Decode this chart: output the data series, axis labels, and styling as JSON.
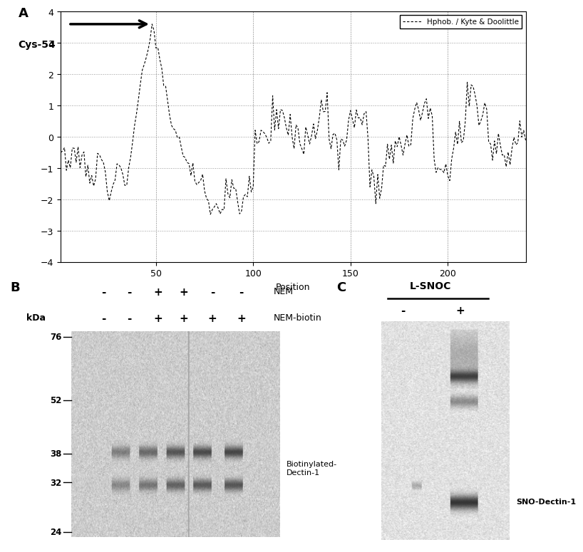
{
  "panel_A_label": "A",
  "panel_B_label": "B",
  "panel_C_label": "C",
  "legend_label": "Hphob. / Kyte & Doolittle",
  "xlabel": "Position",
  "yticks": [
    -4,
    -3,
    -2,
    -1,
    0,
    1,
    2,
    3,
    4
  ],
  "xticks": [
    50,
    100,
    150,
    200
  ],
  "ylim": [
    -4,
    4
  ],
  "xlim": [
    1,
    240
  ],
  "cys54_label": "Cys-54",
  "NEM_label": "NEM",
  "NEM_biotin_label": "NEM-biotin",
  "kDa_label": "kDa",
  "kDa_values": [
    76,
    52,
    38,
    32,
    24
  ],
  "biotinylated_label": "Biotinylated-\nDectin-1",
  "L_SNOC_label": "L-SNOC",
  "SNO_label": "SNO-Dectin-1",
  "line_color": "#000000",
  "grid_color": "#888888",
  "bg_color": "#ffffff",
  "NEM_signs": [
    "-",
    "-",
    "+",
    "+",
    "-",
    "-"
  ],
  "NEM_biotin_signs": [
    "-",
    "-",
    "+",
    "+",
    "+",
    "+"
  ]
}
